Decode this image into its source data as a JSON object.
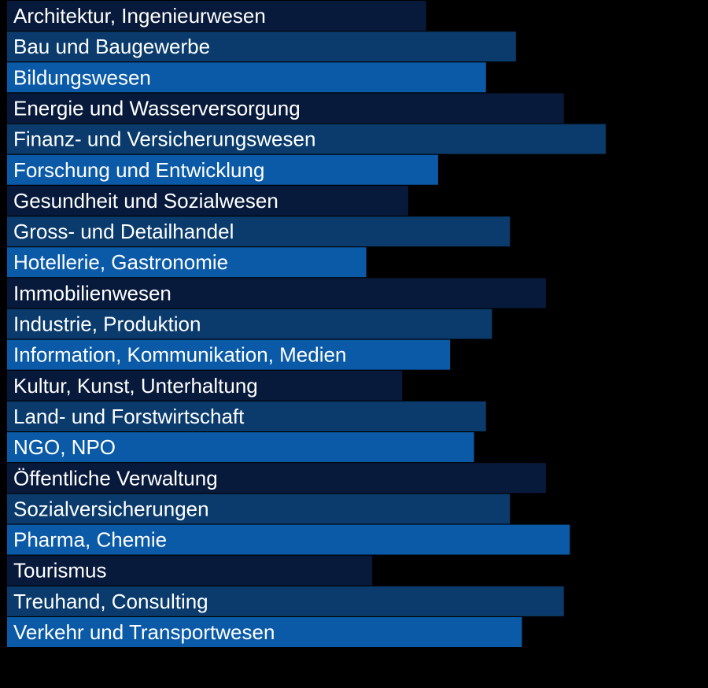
{
  "chart_data": {
    "type": "bar",
    "orientation": "horizontal",
    "title": "",
    "xlabel": "",
    "ylabel": "",
    "grid": false,
    "legend": "none",
    "xlim": [
      0,
      100
    ],
    "palette": [
      "#081a3b",
      "#0a3b6c",
      "#0a5aa8"
    ],
    "background": "#000000",
    "label_color": "#ffffff",
    "categories": [
      "Architektur, Ingenieurwesen",
      "Bau und Baugewerbe",
      "Bildungswesen",
      "Energie und Wasserversorgung",
      "Finanz- und Versicherungswesen",
      "Forschung und Entwicklung",
      "Gesundheit und Sozialwesen",
      "Gross- und Detailhandel",
      "Hotellerie, Gastronomie",
      "Immobilienwesen",
      "Industrie, Produktion",
      "Information, Kommunikation, Medien",
      "Kultur, Kunst, Unterhaltung",
      "Land- und Forstwirtschaft",
      "NGO, NPO",
      "Öffentliche Verwaltung",
      "Sozialversicherungen",
      "Pharma, Chemie",
      "Tourismus",
      "Treuhand, Consulting",
      "Verkehr und Transportwesen"
    ],
    "values": [
      70,
      85,
      80,
      93,
      100,
      72,
      67,
      84,
      60,
      90,
      81,
      74,
      66,
      80,
      78,
      90,
      84,
      94,
      61,
      93,
      86
    ]
  }
}
